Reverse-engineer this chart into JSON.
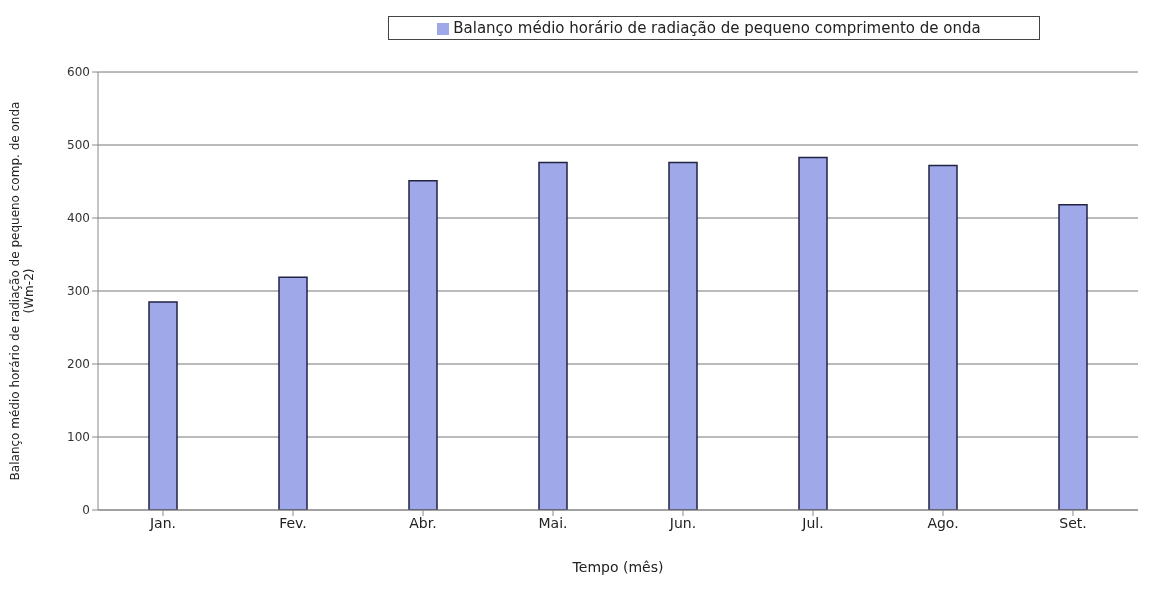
{
  "chart_data": {
    "type": "bar",
    "xlabel": "Tempo (mês)",
    "ylabel": "Balanço médio horário de radiação de pequeno comp. de onda\n(Wm-2)",
    "categories": [
      "Jan.",
      "Fev.",
      "Abr.",
      "Mai.",
      "Jun.",
      "Jul.",
      "Ago.",
      "Set."
    ],
    "series": [
      {
        "name": "Balanço médio horário de radiação de pequeno comprimento  de onda",
        "color": "#9fa8e8",
        "values": [
          285,
          319,
          451,
          476,
          476,
          483,
          472,
          418
        ]
      }
    ],
    "ylim": [
      0,
      600
    ],
    "yticks": [
      0,
      100,
      200,
      300,
      400,
      500,
      600
    ],
    "grid": "y",
    "legend": "top"
  }
}
